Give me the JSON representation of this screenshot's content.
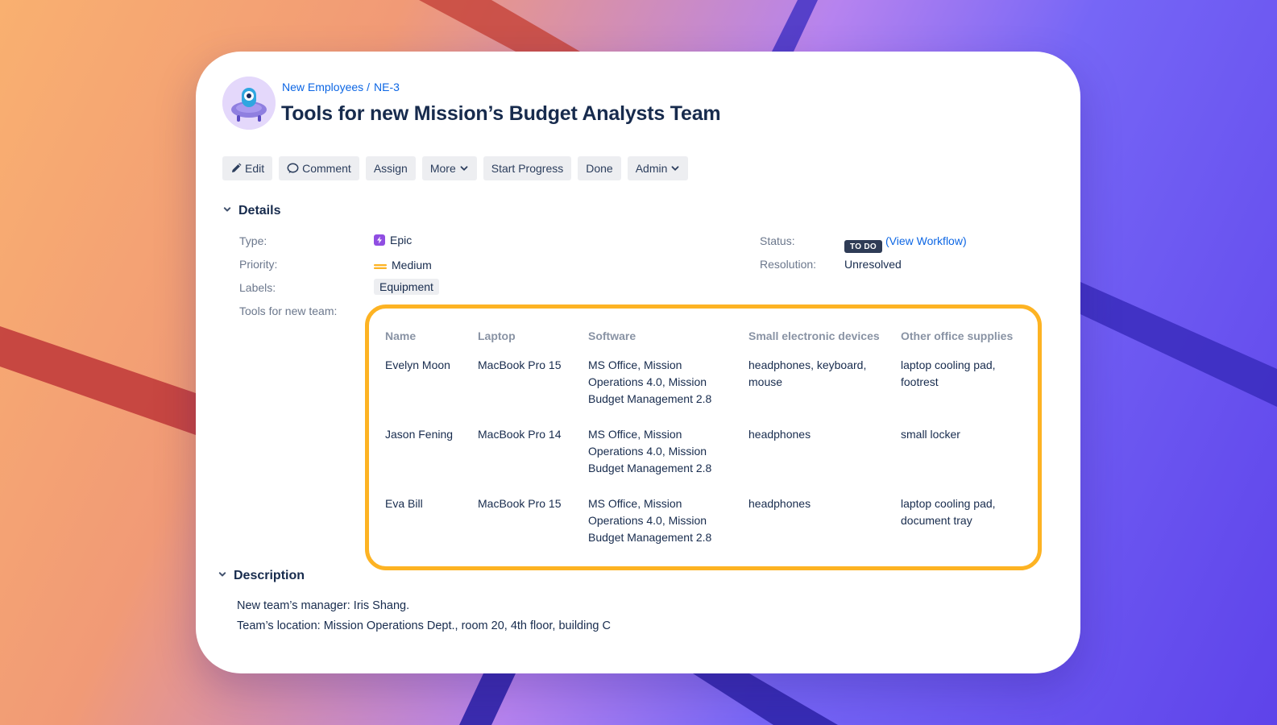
{
  "breadcrumb": {
    "project": "New Employees",
    "issue_key": "NE-3"
  },
  "title": "Tools for new Mission’s Budget Analysts Team",
  "toolbar": {
    "edit": "Edit",
    "comment": "Comment",
    "assign": "Assign",
    "more": "More",
    "start_progress": "Start Progress",
    "done": "Done",
    "admin": "Admin"
  },
  "details": {
    "heading": "Details",
    "type_label": "Type:",
    "type_value": "Epic",
    "priority_label": "Priority:",
    "priority_value": "Medium",
    "labels_label": "Labels:",
    "labels_value": "Equipment",
    "status_label": "Status:",
    "status_value": "TO DO",
    "view_workflow": "(View Workflow)",
    "resolution_label": "Resolution:",
    "resolution_value": "Unresolved",
    "tools_label": "Tools for new team:"
  },
  "tools_table": {
    "headers": [
      "Name",
      "Laptop",
      "Software",
      "Small electronic devices",
      "Other office supplies"
    ],
    "rows": [
      {
        "name": "Evelyn Moon",
        "laptop": "MacBook Pro 15",
        "software": [
          "MS Office, Mission",
          "Operations 4.0, Mission",
          "Budget Management 2.8"
        ],
        "devices": [
          "headphones, keyboard,",
          "mouse"
        ],
        "supplies": [
          "laptop cooling pad,",
          "footrest"
        ]
      },
      {
        "name": "Jason Fening",
        "laptop": "MacBook Pro 14",
        "software": [
          "MS Office, Mission",
          "Operations 4.0, Mission",
          "Budget Management 2.8"
        ],
        "devices": [
          "headphones"
        ],
        "supplies": [
          "small locker"
        ]
      },
      {
        "name": "Eva Bill",
        "laptop": "MacBook Pro 15",
        "software": [
          "MS Office, Mission",
          "Operations 4.0, Mission",
          "Budget Management 2.8"
        ],
        "devices": [
          "headphones"
        ],
        "supplies": [
          "laptop cooling pad,",
          "document tray"
        ]
      }
    ]
  },
  "description": {
    "heading": "Description",
    "lines": [
      "New team’s manager: Iris Shang.",
      "Team’s location: Mission Operations Dept., room 20, 4th floor, building C"
    ]
  },
  "colors": {
    "accent": "#fdb323",
    "link": "#0c66e4",
    "epic": "#904ee2",
    "status_todo": "#2f3c56"
  },
  "icons": [
    "project-avatar-icon",
    "pencil-icon",
    "comment-icon",
    "chevron-down-icon",
    "epic-icon",
    "priority-medium-icon"
  ]
}
